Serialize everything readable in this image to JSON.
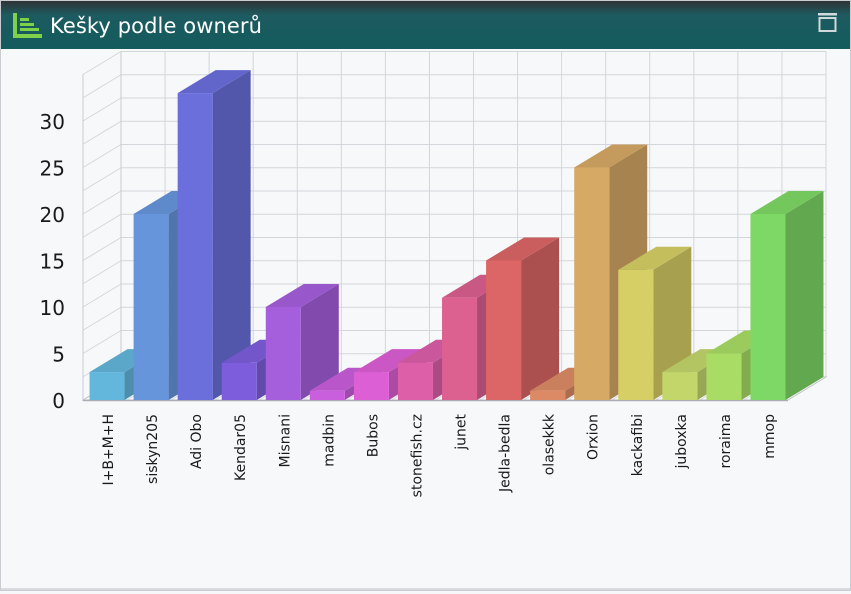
{
  "window": {
    "title": "Kešky podle ownerů",
    "app_icon": "bar-list-icon",
    "maximize_icon": "maximize-icon"
  },
  "chart_data": {
    "type": "bar",
    "style": "3d-column",
    "title": "",
    "xlabel": "",
    "ylabel": "",
    "ylim": [
      0,
      35
    ],
    "yticks": [
      0,
      5,
      10,
      15,
      20,
      25,
      30
    ],
    "grid": true,
    "legend": "none",
    "categories": [
      "I+B+M+H",
      "siskyn205",
      "Adi Obo",
      "Kendar05",
      "Misnani",
      "madbin",
      "Bubos",
      "stonefish.cz",
      "junet",
      "Jedla-bedla",
      "olasekkk",
      "Orxion",
      "kackafibi",
      "juboxka",
      "roraima",
      "mmop"
    ],
    "values": [
      3,
      20,
      33,
      4,
      10,
      1,
      3,
      4,
      11,
      15,
      1,
      25,
      14,
      3,
      5,
      20
    ],
    "colors": [
      "#63b6dc",
      "#6695dc",
      "#6a6fdc",
      "#7d5ddc",
      "#a55fdc",
      "#c95fdc",
      "#dc5fd5",
      "#dc5fa8",
      "#dc6090",
      "#dc6565",
      "#dc8a65",
      "#d6a965",
      "#d6cf65",
      "#c3d66a",
      "#a8dc65",
      "#7dd865"
    ]
  }
}
